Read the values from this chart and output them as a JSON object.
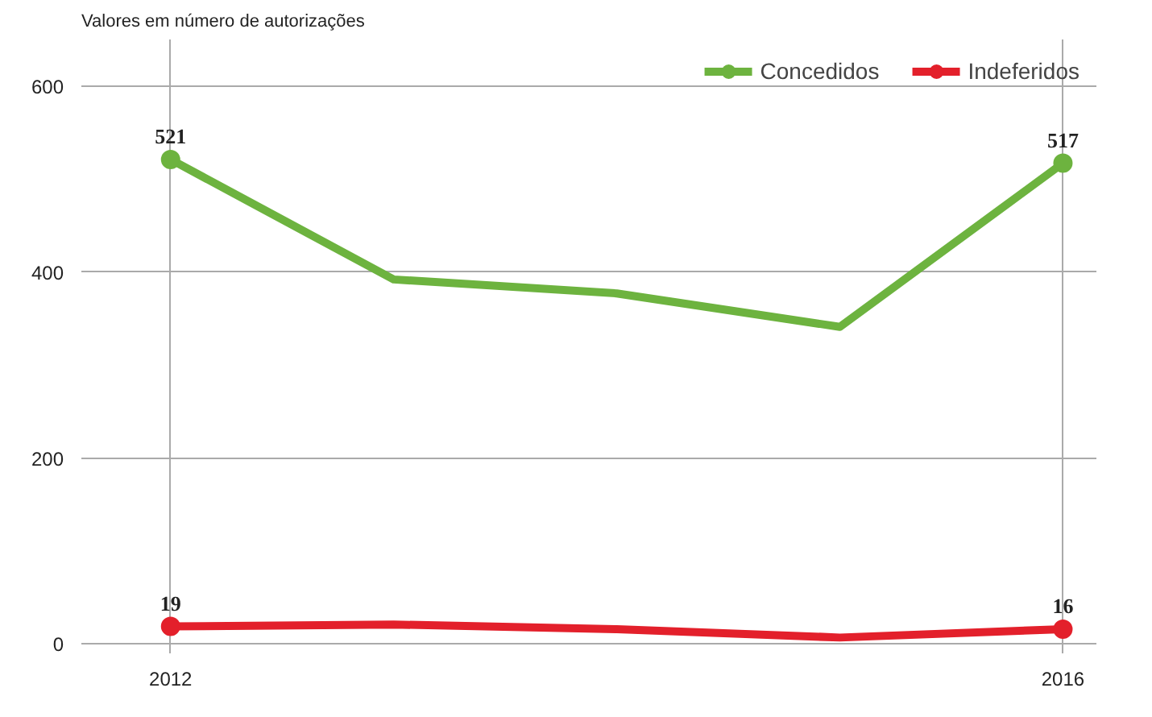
{
  "chart_data": {
    "type": "line",
    "subtitle": "Valores em número de autorizações",
    "x": [
      2012,
      2013,
      2014,
      2015,
      2016
    ],
    "series": [
      {
        "name": "Concedidos",
        "color": "#6db33f",
        "values": [
          521,
          392,
          377,
          341,
          517
        ],
        "value_labels": [
          "521",
          null,
          null,
          null,
          "517"
        ]
      },
      {
        "name": "Indeferidos",
        "color": "#e3202b",
        "values": [
          19,
          21,
          16,
          7,
          16
        ],
        "value_labels": [
          "19",
          null,
          null,
          null,
          "16"
        ]
      }
    ],
    "xlim": [
      2011.6,
      2016.15
    ],
    "xticks": [
      2012,
      2016
    ],
    "ylim": [
      -10,
      650
    ],
    "yticks": [
      0,
      200,
      400,
      600
    ],
    "grid": true,
    "legend": "top right",
    "line_style": "solid"
  }
}
